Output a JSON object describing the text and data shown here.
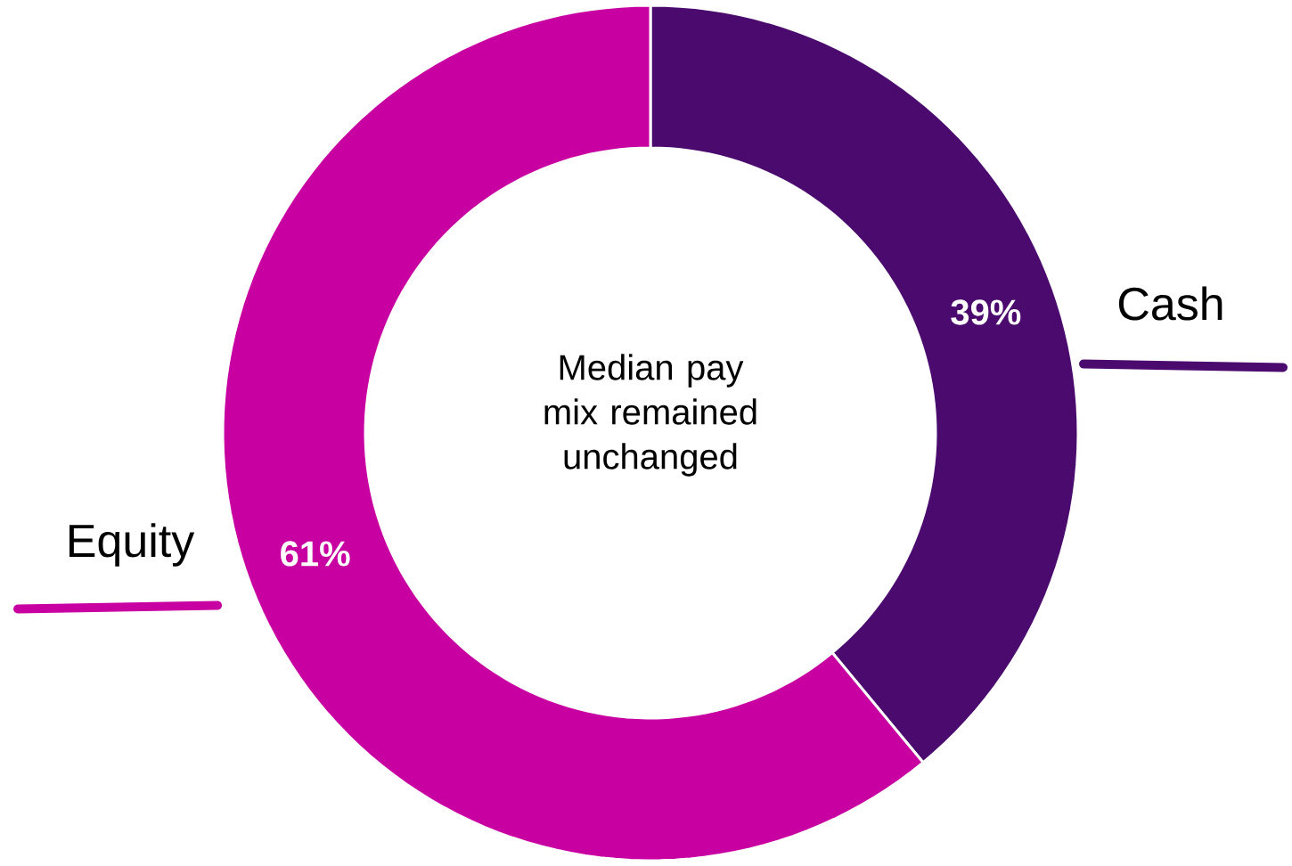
{
  "chart_data": {
    "type": "donut",
    "categories": [
      "Cash",
      "Equity"
    ],
    "values": [
      39,
      61
    ],
    "colors": [
      "#4b0a6e",
      "#c800a1"
    ],
    "value_labels": [
      "39%",
      "61%"
    ],
    "annotations": [
      "Median pay mix remained unchanged"
    ]
  }
}
